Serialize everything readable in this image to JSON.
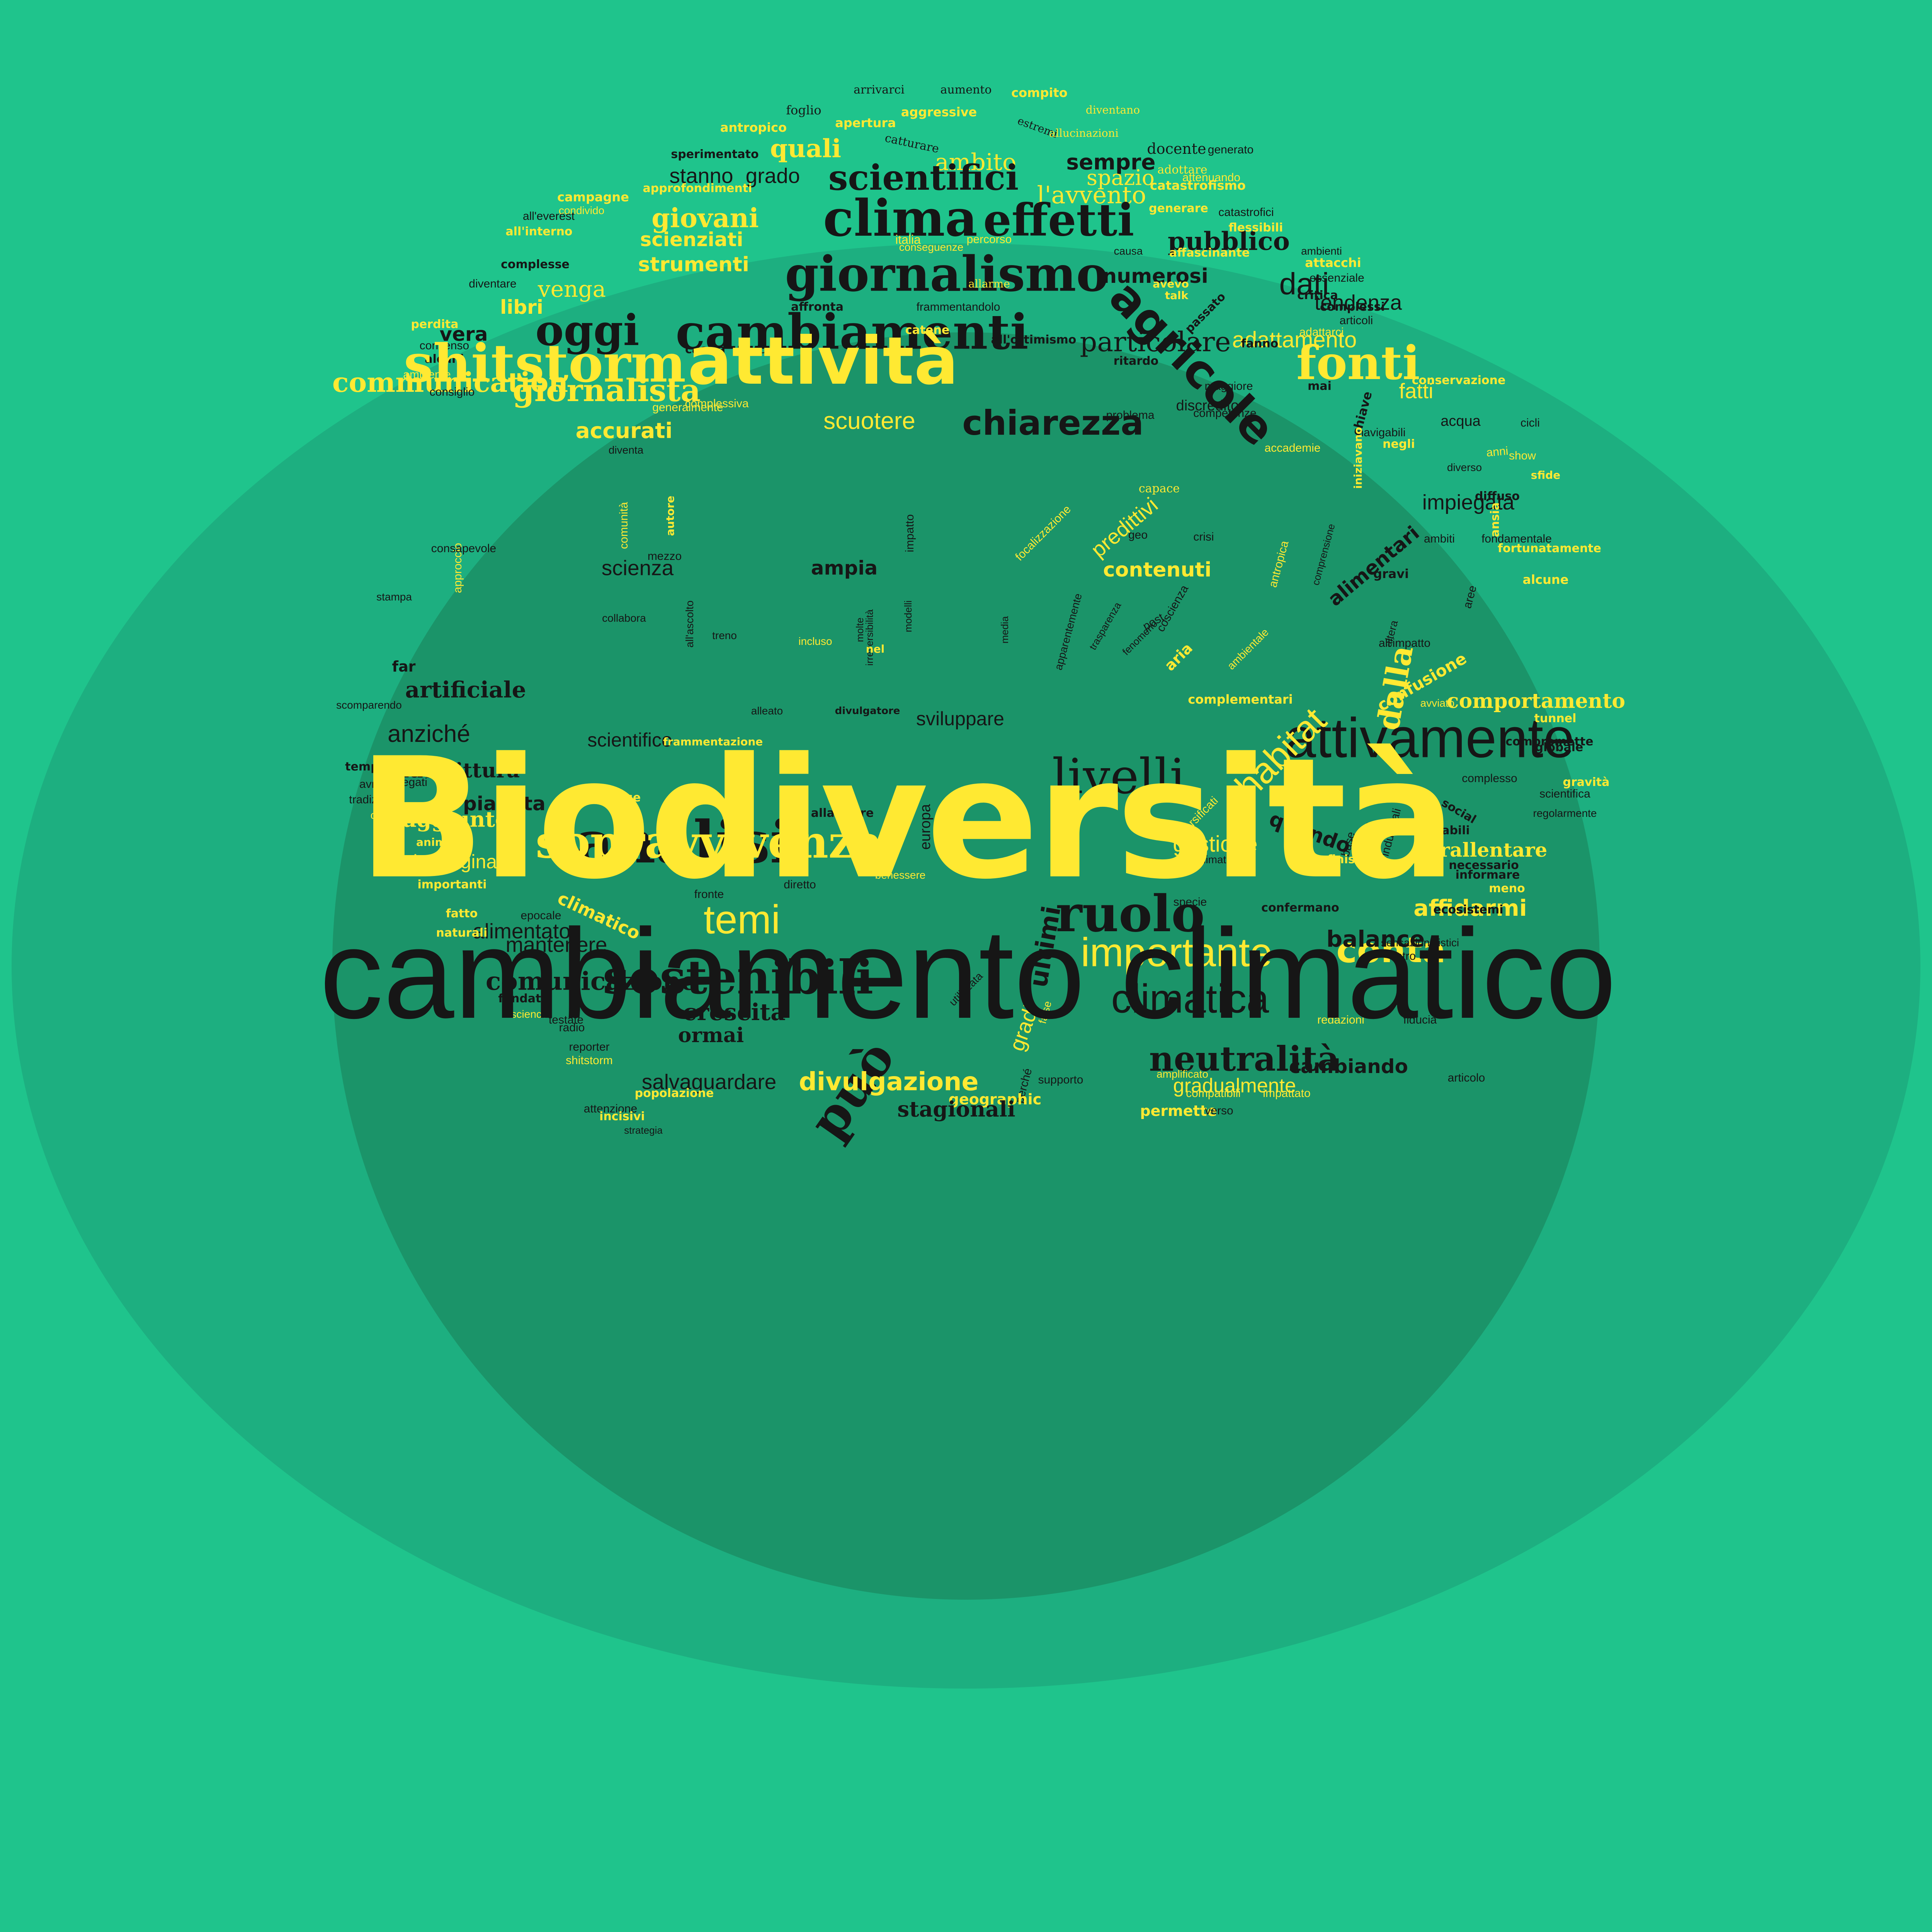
{
  "colors": {
    "background": "#1fc48c",
    "ellipse": "#1daf80",
    "circle": "#1b9469",
    "yellow": "#ffe932",
    "black": "#161616"
  },
  "headline": {
    "title": "Biodiversità",
    "subtitle": "cambiamento climatico"
  },
  "words": [
    "arrivarci",
    "aumento",
    "compito",
    "foglio",
    "aggressive",
    "diventano",
    "apertura",
    "estremi",
    "antropico",
    "allucinazioni",
    "catturare",
    "quali",
    "docente",
    "generato",
    "sperimentato",
    "ambito",
    "sempre",
    "adottare",
    "stanno",
    "grado",
    "spazio",
    "attenuando",
    "scientifici",
    "catastrofismo",
    "approfondimenti",
    "l'avvento",
    "campagne",
    "clima",
    "effetti",
    "generare",
    "catastrofici",
    "condivido",
    "giovani",
    "italia",
    "percorso",
    "pubblico",
    "all'everest",
    "scienziati",
    "flessibili",
    "all'interno",
    "conseguenze",
    "causa",
    "affascinante",
    "ambienti",
    "giornalismo",
    "attacchi",
    "complesse",
    "strumenti",
    "numerosi",
    "dati",
    "essenziale",
    "diventare",
    "venga",
    "allarme",
    "avevo",
    "critica",
    "talk",
    "tendenza",
    "complessi",
    "libri",
    "affronta",
    "frammentandolo",
    "passato",
    "articoli",
    "oggi",
    "cambiamenti",
    "perdita",
    "vera",
    "catene",
    "adattarci",
    "all'ottimismo",
    "adattamento",
    "fanno",
    "consenso",
    "caccia",
    "credo",
    "particolare",
    "alcuni",
    "shitstorm",
    "attività",
    "ritardo",
    "fonti",
    "ambiente",
    "communication",
    "agricole",
    "consiglio",
    "maggiore",
    "conservazione",
    "mai",
    "discredito",
    "fatti",
    "giornalista",
    "complessiva",
    "punto",
    "problema",
    "generalmente",
    "competenze",
    "acqua",
    "chiave",
    "cicli",
    "scuotere",
    "chiarezza",
    "navigabili",
    "accurati",
    "iniziavano",
    "negli",
    "diventa",
    "accademie",
    "anni",
    "show",
    "diverso",
    "sfide",
    "diffuso",
    "impiegata",
    "ansia",
    "capace",
    "autore",
    "comunità",
    "impatto",
    "predittivi",
    "ambiti",
    "fondamentale",
    "comprensione",
    "approccio",
    "mezzo",
    "consapevole",
    "focalizzazione",
    "geo",
    "crisi",
    "antropica",
    "fortunatamente",
    "stampa",
    "scienza",
    "ampia",
    "contenuti",
    "alimentari",
    "gravi",
    "alcune",
    "collabora",
    "coscienza",
    "post",
    "aree",
    "aria",
    "apparentemente",
    "all'ascolto",
    "trasparenza",
    "modelli",
    "molte",
    "irreversibilità",
    "media",
    "fenomeno",
    "altera",
    "treno",
    "incluso",
    "nel",
    "ambientale",
    "all'impatto",
    "analisi",
    "far",
    "confusione",
    "artificiale",
    "dalla",
    "avviato",
    "complementari",
    "comportamento",
    "scomparendo",
    "attivamente",
    "habitat",
    "tunnel",
    "alleato",
    "divulgatore",
    "sviluppare",
    "anziché",
    "scientifico",
    "frammentazione",
    "fattori",
    "compromette",
    "diversificati",
    "globale",
    "temperature",
    "addirittura",
    "guardiamo",
    "base",
    "avremo",
    "legati",
    "livelli",
    "complesso",
    "gravità",
    "social",
    "scientifica",
    "tradizionali",
    "pianeta",
    "risorse",
    "allarmare",
    "europa",
    "fronti",
    "preindustriali",
    "verificabili",
    "regolarmente",
    "cresce",
    "aggiunto",
    "sopravvivenza",
    "quando",
    "rallentare",
    "gestione",
    "animali",
    "climatici",
    "finisce",
    "necessario",
    "immaginare",
    "informare",
    "benessere",
    "importanti",
    "diretto",
    "ruolo",
    "affidarmi",
    "meno",
    "climatico",
    "temi",
    "fatto",
    "epocale",
    "fronte",
    "ultimi",
    "specie",
    "confermano",
    "ecosistemi",
    "alimentato",
    "naturali",
    "mantenere",
    "importante",
    "conta",
    "balance",
    "sensazionalistici",
    "fondati",
    "comunicazione",
    "sostenibili",
    "utilizzata",
    "climatica",
    "entro",
    "crescita",
    "science",
    "testate",
    "gradi",
    "false",
    "redazioni",
    "fiducia",
    "può",
    "radio",
    "ormai",
    "neutralità",
    "cambiando",
    "reporter",
    "amplificato",
    "salvaguardare",
    "supporto",
    "articolo",
    "shitstorm",
    "divulgazione",
    "perché",
    "gradualmente",
    "impattato",
    "popolazione",
    "compatibili",
    "attenzione",
    "geographic",
    "incisivi",
    "permette",
    "verso",
    "strategia",
    "stagionali"
  ]
}
